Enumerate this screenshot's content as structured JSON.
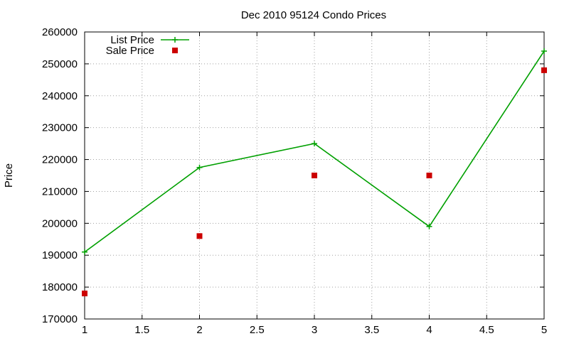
{
  "chart_data": {
    "type": "line",
    "title": "Dec 2010 95124 Condo Prices",
    "xlabel": "",
    "ylabel": "Price",
    "xlim": [
      1,
      5
    ],
    "ylim": [
      170000,
      260000
    ],
    "x_ticks": [
      1,
      1.5,
      2,
      2.5,
      3,
      3.5,
      4,
      4.5,
      5
    ],
    "y_ticks": [
      170000,
      180000,
      190000,
      200000,
      210000,
      220000,
      230000,
      240000,
      250000,
      260000
    ],
    "grid": true,
    "legend_position": "top-left",
    "series": [
      {
        "name": "List Price",
        "style": "line-points",
        "marker": "plus",
        "color": "#00a000",
        "x": [
          1,
          2,
          3,
          4,
          5
        ],
        "values": [
          191000,
          217500,
          225000,
          199000,
          254000
        ]
      },
      {
        "name": "Sale Price",
        "style": "points",
        "marker": "square",
        "color": "#cc0000",
        "x": [
          1,
          2,
          3,
          4,
          5
        ],
        "values": [
          178000,
          196000,
          215000,
          215000,
          248000
        ]
      }
    ]
  }
}
